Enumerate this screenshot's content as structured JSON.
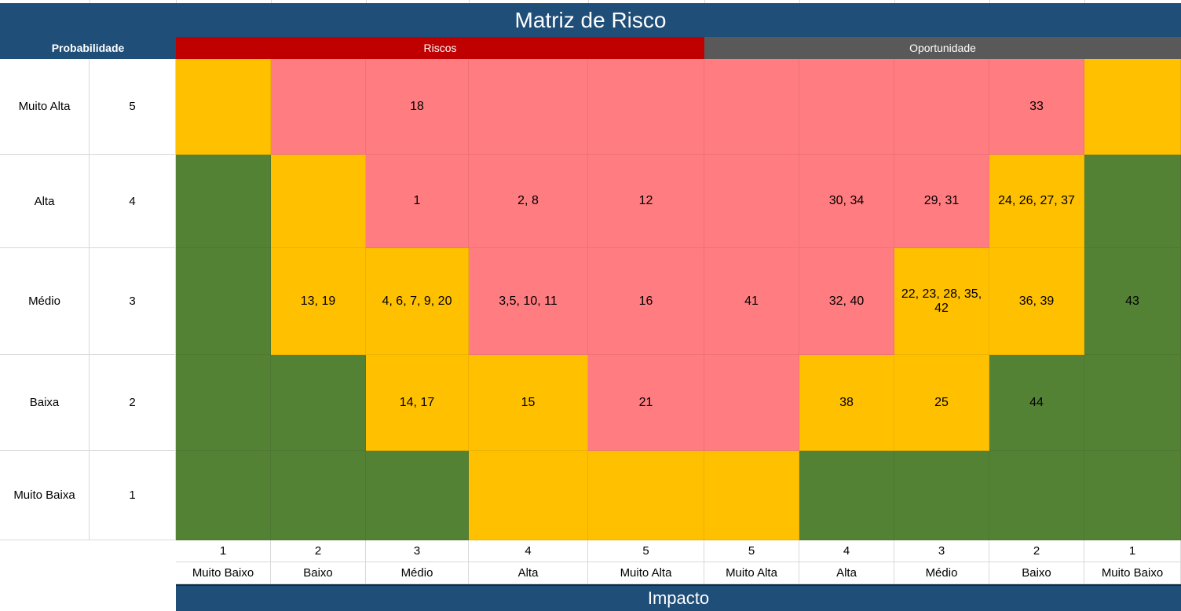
{
  "title": "Matriz de Risco",
  "headers": {
    "probabilidade": "Probabilidade",
    "riscos": "Riscos",
    "oportunidade": "Oportunidade"
  },
  "colors": {
    "header_blue": "#1f4e79",
    "riscos_red": "#c00000",
    "oportunidade_gray": "#595959",
    "high_pink": "#ff7c80",
    "medium_yellow": "#ffc000",
    "low_green": "#548235"
  },
  "rows": [
    {
      "label": "Muito Alta",
      "value": "5",
      "cells": [
        {
          "t": "",
          "c": "y"
        },
        {
          "t": "",
          "c": "r"
        },
        {
          "t": "18",
          "c": "r"
        },
        {
          "t": "",
          "c": "r"
        },
        {
          "t": "",
          "c": "r"
        },
        {
          "t": "",
          "c": "r"
        },
        {
          "t": "",
          "c": "r"
        },
        {
          "t": "",
          "c": "r"
        },
        {
          "t": "33",
          "c": "r"
        },
        {
          "t": "",
          "c": "y"
        }
      ]
    },
    {
      "label": "Alta",
      "value": "4",
      "cells": [
        {
          "t": "",
          "c": "g"
        },
        {
          "t": "",
          "c": "y"
        },
        {
          "t": "1",
          "c": "r"
        },
        {
          "t": "2, 8",
          "c": "r"
        },
        {
          "t": "12",
          "c": "r"
        },
        {
          "t": "",
          "c": "r"
        },
        {
          "t": "30, 34",
          "c": "r"
        },
        {
          "t": "29, 31",
          "c": "r"
        },
        {
          "t": "24, 26, 27, 37",
          "c": "y"
        },
        {
          "t": "",
          "c": "g"
        }
      ]
    },
    {
      "label": "Médio",
      "value": "3",
      "cells": [
        {
          "t": "",
          "c": "g"
        },
        {
          "t": "13, 19",
          "c": "y"
        },
        {
          "t": "4, 6, 7, 9, 20",
          "c": "y"
        },
        {
          "t": "3,5, 10, 11",
          "c": "r"
        },
        {
          "t": "16",
          "c": "r"
        },
        {
          "t": "41",
          "c": "r"
        },
        {
          "t": "32, 40",
          "c": "r"
        },
        {
          "t": "22, 23, 28, 35, 42",
          "c": "y"
        },
        {
          "t": "36, 39",
          "c": "y"
        },
        {
          "t": "43",
          "c": "g"
        }
      ]
    },
    {
      "label": "Baixa",
      "value": "2",
      "cells": [
        {
          "t": "",
          "c": "g"
        },
        {
          "t": "",
          "c": "g"
        },
        {
          "t": "14, 17",
          "c": "y"
        },
        {
          "t": "15",
          "c": "y"
        },
        {
          "t": "21",
          "c": "r"
        },
        {
          "t": "",
          "c": "r"
        },
        {
          "t": "38",
          "c": "y"
        },
        {
          "t": "25",
          "c": "y"
        },
        {
          "t": "44",
          "c": "g"
        },
        {
          "t": "",
          "c": "g"
        }
      ]
    },
    {
      "label": "Muito Baixa",
      "value": "1",
      "cells": [
        {
          "t": "",
          "c": "g"
        },
        {
          "t": "",
          "c": "g"
        },
        {
          "t": "",
          "c": "g"
        },
        {
          "t": "",
          "c": "y"
        },
        {
          "t": "",
          "c": "y"
        },
        {
          "t": "",
          "c": "y"
        },
        {
          "t": "",
          "c": "g"
        },
        {
          "t": "",
          "c": "g"
        },
        {
          "t": "",
          "c": "g"
        },
        {
          "t": "",
          "c": "g"
        }
      ]
    }
  ],
  "impact_columns": [
    {
      "value": "1",
      "label": "Muito Baixo"
    },
    {
      "value": "2",
      "label": "Baixo"
    },
    {
      "value": "3",
      "label": "Médio"
    },
    {
      "value": "4",
      "label": "Alta"
    },
    {
      "value": "5",
      "label": "Muito Alta"
    },
    {
      "value": "5",
      "label": "Muito Alta"
    },
    {
      "value": "4",
      "label": "Alta"
    },
    {
      "value": "3",
      "label": "Médio"
    },
    {
      "value": "2",
      "label": "Baixo"
    },
    {
      "value": "1",
      "label": "Muito Baixo"
    }
  ],
  "impacto_label": "Impacto"
}
